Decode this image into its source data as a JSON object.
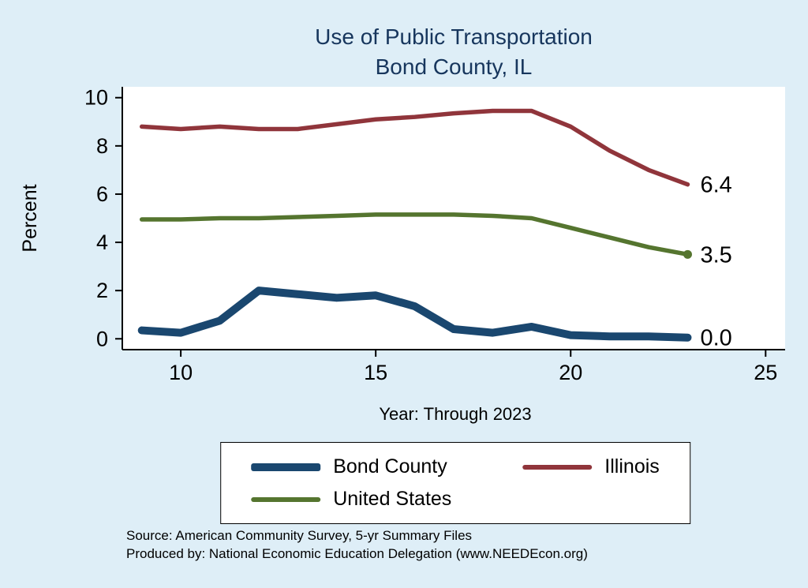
{
  "title": {
    "line1": "Use of Public Transportation",
    "line2": "Bond County, IL"
  },
  "colors": {
    "background": "#deeef7",
    "title": "#17365d",
    "axis": "#000000",
    "plot_background": "#ffffff"
  },
  "chart_data": {
    "type": "line",
    "title": "Use of Public Transportation",
    "subtitle": "Bond County, IL",
    "xlabel": "Year: Through 2023",
    "ylabel": "Percent",
    "xlim": [
      8.5,
      25.5
    ],
    "ylim": [
      0,
      10
    ],
    "xticks": [
      10,
      15,
      20,
      25
    ],
    "yticks": [
      0,
      2,
      4,
      6,
      8,
      10
    ],
    "grid": false,
    "legend_position": "bottom",
    "x": [
      9,
      10,
      11,
      12,
      13,
      14,
      15,
      16,
      17,
      18,
      19,
      20,
      21,
      22,
      23
    ],
    "series": [
      {
        "name": "Bond County",
        "color": "#1a476f",
        "line_width": 10,
        "values": [
          0.35,
          0.25,
          0.75,
          2.0,
          1.85,
          1.7,
          1.8,
          1.35,
          0.4,
          0.25,
          0.5,
          0.15,
          0.1,
          0.1,
          0.05
        ],
        "end_label": "0.0",
        "end_marker": false
      },
      {
        "name": "Illinois",
        "color": "#90353b",
        "line_width": 5.5,
        "values": [
          8.8,
          8.7,
          8.8,
          8.7,
          8.7,
          8.9,
          9.1,
          9.2,
          9.35,
          9.45,
          9.45,
          8.8,
          7.8,
          7.0,
          6.4
        ],
        "end_label": "6.4",
        "end_marker": false
      },
      {
        "name": "United States",
        "color": "#55752f",
        "line_width": 5.5,
        "values": [
          4.95,
          4.95,
          5.0,
          5.0,
          5.05,
          5.1,
          5.15,
          5.15,
          5.15,
          5.1,
          5.0,
          4.6,
          4.2,
          3.8,
          3.5
        ],
        "end_label": "3.5",
        "end_marker": true
      }
    ]
  },
  "footer": {
    "source_line": "Source: American Community Survey, 5-yr Summary Files",
    "produced_line": "Produced by: National Economic Education Delegation (www.NEEDEcon.org)"
  }
}
